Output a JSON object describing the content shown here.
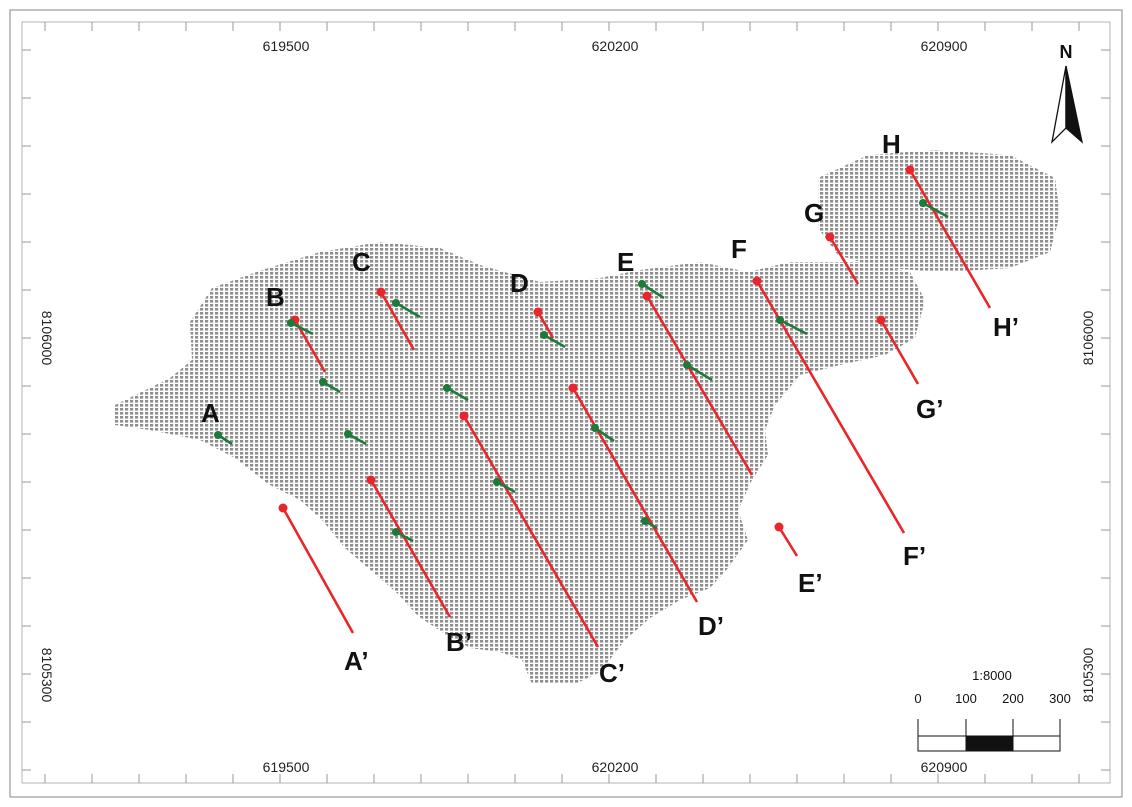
{
  "map": {
    "coords": {
      "top_x": [
        "619500",
        "620200",
        "620900"
      ],
      "bottom_x": [
        "619500",
        "620200",
        "620900"
      ],
      "left_y": [
        "8106000",
        "8105300"
      ],
      "right_y": [
        "8106000",
        "8105300"
      ]
    },
    "north_label": "N",
    "scale": {
      "ratio": "1:8000",
      "ticks": [
        "0",
        "100",
        "200",
        "300"
      ]
    },
    "sections": [
      {
        "start": "A",
        "end": "A’"
      },
      {
        "start": "B",
        "end": "B’"
      },
      {
        "start": "C",
        "end": "C’"
      },
      {
        "start": "D",
        "end": "D’"
      },
      {
        "start": "E",
        "end": "E’"
      },
      {
        "start": "F",
        "end": "F’"
      },
      {
        "start": "G",
        "end": "G’"
      },
      {
        "start": "H",
        "end": "H’"
      }
    ],
    "colors": {
      "section_line": "#e8262b",
      "drillhole": "#1d7a3a",
      "block_model": "#8f8f8f",
      "frame": "#9a9a9a"
    }
  }
}
